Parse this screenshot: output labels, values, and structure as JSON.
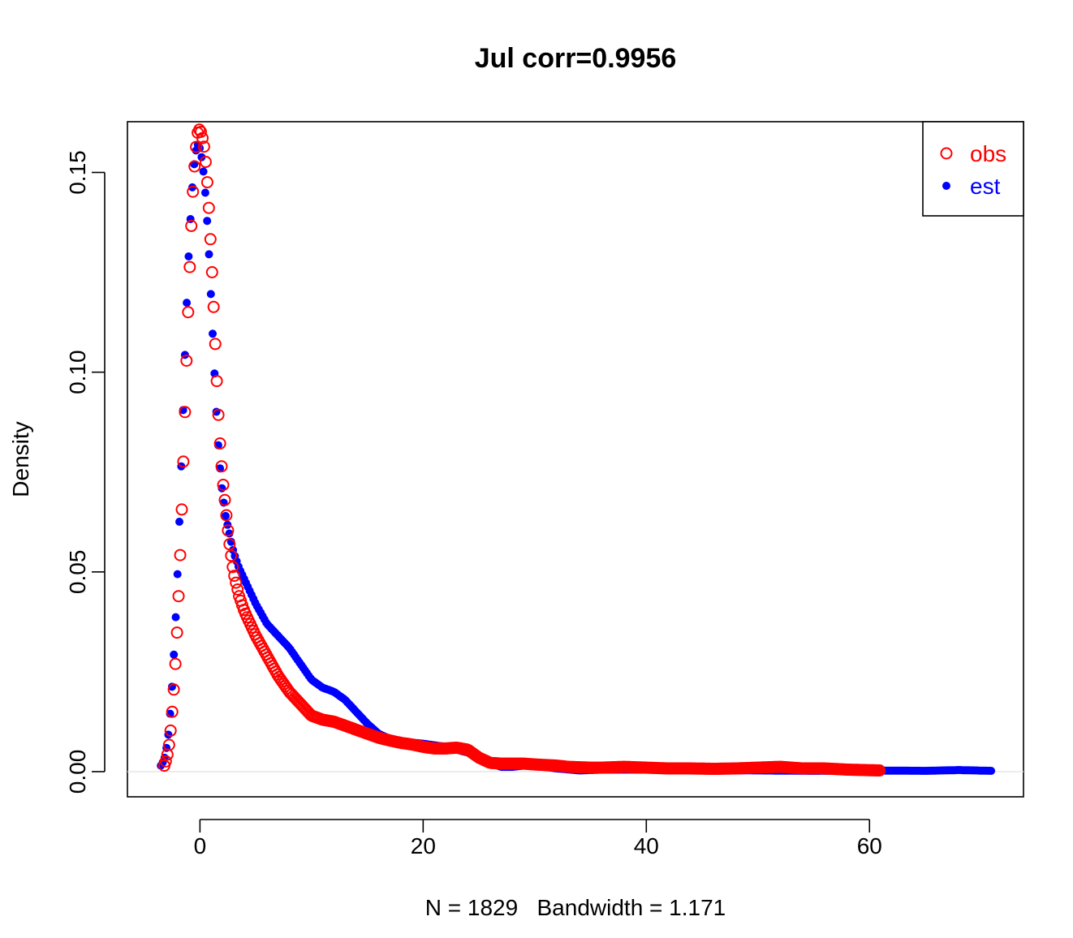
{
  "chart_data": {
    "type": "scatter",
    "title": "Jul corr=0.9956",
    "xlabel": "N = 1829   Bandwidth = 1.171",
    "ylabel": "Density",
    "xlim": [
      -6.5,
      73.8
    ],
    "ylim": [
      -0.0063,
      0.1627
    ],
    "x_ticks": [
      0,
      20,
      40,
      60
    ],
    "x_tick_labels": [
      "0",
      "20",
      "40",
      "60"
    ],
    "y_ticks": [
      0.0,
      0.05,
      0.1,
      0.15
    ],
    "y_tick_labels": [
      "0.00",
      "0.05",
      "0.10",
      "0.15"
    ],
    "grid": false,
    "legend_position": "top-right",
    "zero_line": true,
    "series": [
      {
        "name": "obs",
        "marker": "open-circle",
        "color": "#ff0000",
        "x_range": [
          -3.2,
          60.9
        ],
        "points": 450,
        "x": [
          -3.2,
          -3.0,
          -2.8,
          -2.6,
          -2.4,
          -2.2,
          -2.0,
          -1.8,
          -1.6,
          -1.4,
          -1.2,
          -1.0,
          -0.8,
          -0.6,
          -0.4,
          -0.2,
          0.0,
          0.2,
          0.4,
          0.6,
          0.8,
          1.0,
          1.2,
          1.4,
          1.6,
          1.8,
          2.0,
          2.3,
          2.6,
          3.0,
          3.5,
          4.0,
          5.0,
          6.0,
          7.0,
          8.0,
          9.0,
          10.0,
          11.0,
          12.0,
          13.0,
          14.0,
          15.0,
          16.0,
          17.0,
          18.0,
          19.0,
          20.0,
          21.0,
          22.0,
          23.0,
          24.0,
          25.0,
          26.0,
          27.0,
          28.0,
          29.0,
          30.0,
          32.0,
          33.0,
          35.0,
          36.0,
          38.0,
          40.0,
          42.0,
          44.0,
          46.0,
          48.0,
          50.0,
          52.0,
          54.0,
          56.0,
          58.0,
          60.9
        ],
        "y": [
          0.0015,
          0.003,
          0.006,
          0.011,
          0.018,
          0.027,
          0.038,
          0.052,
          0.068,
          0.085,
          0.103,
          0.12,
          0.135,
          0.147,
          0.155,
          0.16,
          0.161,
          0.159,
          0.156,
          0.15,
          0.141,
          0.13,
          0.118,
          0.105,
          0.092,
          0.082,
          0.074,
          0.066,
          0.058,
          0.05,
          0.044,
          0.04,
          0.034,
          0.029,
          0.024,
          0.02,
          0.017,
          0.014,
          0.013,
          0.0125,
          0.0115,
          0.0105,
          0.0095,
          0.0085,
          0.0078,
          0.0072,
          0.0068,
          0.0062,
          0.0058,
          0.0058,
          0.006,
          0.0055,
          0.0035,
          0.0022,
          0.002,
          0.002,
          0.002,
          0.0018,
          0.0015,
          0.0012,
          0.001,
          0.001,
          0.0012,
          0.001,
          0.0008,
          0.0008,
          0.0007,
          0.0008,
          0.001,
          0.0012,
          0.0008,
          0.0008,
          0.0005,
          0.0003
        ]
      },
      {
        "name": "est",
        "marker": "filled-dot",
        "color": "#0000ff",
        "x_range": [
          -3.5,
          70.9
        ],
        "points": 450,
        "x": [
          -3.5,
          -3.2,
          -3.0,
          -2.8,
          -2.6,
          -2.4,
          -2.2,
          -2.0,
          -1.8,
          -1.6,
          -1.4,
          -1.2,
          -1.0,
          -0.8,
          -0.6,
          -0.4,
          -0.2,
          0.0,
          0.2,
          0.4,
          0.6,
          0.8,
          1.0,
          1.2,
          1.4,
          1.6,
          1.8,
          2.0,
          2.3,
          2.6,
          3.0,
          3.5,
          4.0,
          5.0,
          6.0,
          7.0,
          8.0,
          9.0,
          10.0,
          11.0,
          12.0,
          13.0,
          14.0,
          15.0,
          16.0,
          17.0,
          18.0,
          20.0,
          22.0,
          24.0,
          25.0,
          26.0,
          27.0,
          28.0,
          29.0,
          30.0,
          32.0,
          34.0,
          36.0,
          40.0,
          45.0,
          50.0,
          55.0,
          60.0,
          65.0,
          68.0,
          70.9
        ],
        "y": [
          0.0015,
          0.003,
          0.006,
          0.01,
          0.017,
          0.026,
          0.037,
          0.05,
          0.066,
          0.083,
          0.1,
          0.116,
          0.13,
          0.141,
          0.15,
          0.155,
          0.157,
          0.156,
          0.153,
          0.148,
          0.14,
          0.13,
          0.118,
          0.106,
          0.094,
          0.083,
          0.076,
          0.07,
          0.064,
          0.06,
          0.055,
          0.051,
          0.048,
          0.042,
          0.037,
          0.034,
          0.031,
          0.027,
          0.023,
          0.021,
          0.02,
          0.018,
          0.015,
          0.012,
          0.0095,
          0.0082,
          0.0075,
          0.007,
          0.0062,
          0.0048,
          0.0035,
          0.0022,
          0.0012,
          0.0012,
          0.0015,
          0.0015,
          0.0008,
          0.0003,
          0.0005,
          0.0005,
          0.0004,
          0.0003,
          0.0002,
          0.0003,
          0.0002,
          0.0004,
          0.0002
        ]
      }
    ]
  }
}
